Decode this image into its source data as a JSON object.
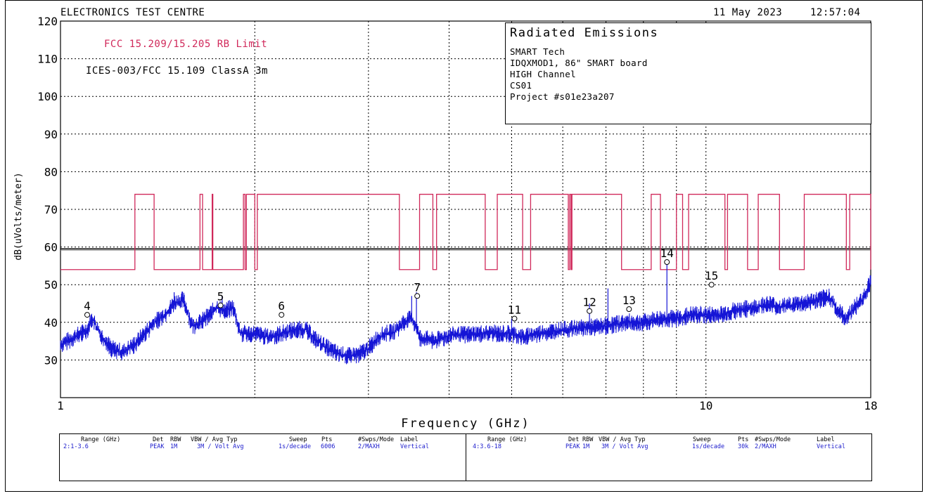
{
  "header": {
    "lab_name": "ELECTRONICS TEST CENTRE",
    "date": "11 May 2023",
    "time": "12:57:04"
  },
  "info_box": {
    "title": "Radiated Emissions",
    "lines": [
      "SMART Tech",
      "IDQXMOD1, 86\" SMART board",
      "HIGH Channel",
      "CS01",
      "Project #s01e23a207"
    ]
  },
  "limits": {
    "rb_limit_label": "FCC 15.209/15.205 RB Limit",
    "classa_label": "ICES-003/FCC 15.109 ClassA 3m"
  },
  "colors": {
    "trace": "#1515d6",
    "rb_limit": "#d0285a",
    "grid": "#000000",
    "table_values": "#1a1acc"
  },
  "chart_data": {
    "type": "line",
    "xlabel": "Frequency (GHz)",
    "ylabel": "dB(uVolts/meter)",
    "xscale": "log",
    "xlim": [
      1,
      18
    ],
    "ylim": [
      20,
      120
    ],
    "x_tick_labels": [
      {
        "x": 1,
        "label": "1"
      },
      {
        "x": 10,
        "label": "10"
      },
      {
        "x": 18,
        "label": "18"
      }
    ],
    "x_minor_ticks": [
      2,
      3,
      4,
      5,
      6,
      7,
      8,
      9
    ],
    "y_ticks": [
      30,
      40,
      50,
      60,
      70,
      80,
      90,
      100,
      110,
      120
    ],
    "grid": true,
    "classa_limit": {
      "name": "ICES-003/FCC 15.109 ClassA 3m",
      "value": 59.5
    },
    "rb_limit": {
      "name": "FCC 15.209/15.205 RB Limit",
      "low": 54,
      "high": 74,
      "high_bands_ghz": [
        [
          1.304,
          1.3965
        ],
        [
          1.6449,
          1.66
        ],
        [
          1.7178,
          1.722
        ],
        [
          1.9205,
          1.9319
        ],
        [
          1.9411,
          2.0
        ],
        [
          2.018,
          3.35
        ],
        [
          3.6,
          3.775
        ],
        [
          3.825,
          4.55
        ],
        [
          4.75,
          5.2
        ],
        [
          5.35,
          6.12
        ],
        [
          6.15,
          6.18
        ],
        [
          6.2,
          7.4
        ],
        [
          8.225,
          8.5
        ],
        [
          9.0,
          9.2
        ],
        [
          9.4,
          10.7
        ],
        [
          10.8,
          11.6
        ],
        [
          12.05,
          13.0
        ],
        [
          14.2,
          16.5
        ],
        [
          16.7,
          18.0
        ]
      ]
    },
    "series": [
      {
        "name": "Vertical",
        "points": [
          [
            1.0,
            34
          ],
          [
            1.05,
            36
          ],
          [
            1.1,
            38
          ],
          [
            1.12,
            41
          ],
          [
            1.15,
            37
          ],
          [
            1.2,
            33
          ],
          [
            1.25,
            32
          ],
          [
            1.3,
            34
          ],
          [
            1.35,
            37
          ],
          [
            1.4,
            40
          ],
          [
            1.45,
            42
          ],
          [
            1.5,
            45
          ],
          [
            1.55,
            46
          ],
          [
            1.6,
            39
          ],
          [
            1.65,
            40
          ],
          [
            1.7,
            42
          ],
          [
            1.75,
            44
          ],
          [
            1.8,
            43
          ],
          [
            1.85,
            44
          ],
          [
            1.9,
            37
          ],
          [
            2.0,
            37
          ],
          [
            2.1,
            36
          ],
          [
            2.2,
            37
          ],
          [
            2.3,
            38
          ],
          [
            2.4,
            38
          ],
          [
            2.5,
            35
          ],
          [
            2.6,
            33
          ],
          [
            2.7,
            31.5
          ],
          [
            2.8,
            31
          ],
          [
            2.9,
            31.5
          ],
          [
            3.0,
            33
          ],
          [
            3.1,
            36
          ],
          [
            3.2,
            37
          ],
          [
            3.3,
            37.5
          ],
          [
            3.4,
            40
          ],
          [
            3.5,
            41
          ],
          [
            3.55,
            39
          ],
          [
            3.6,
            36
          ],
          [
            3.8,
            35
          ],
          [
            4.0,
            36.5
          ],
          [
            4.5,
            37
          ],
          [
            5.0,
            37
          ],
          [
            5.2,
            36
          ],
          [
            5.5,
            37
          ],
          [
            6.0,
            38
          ],
          [
            6.5,
            38.5
          ],
          [
            7.0,
            39
          ],
          [
            7.5,
            40
          ],
          [
            8.0,
            40
          ],
          [
            8.5,
            41
          ],
          [
            9.0,
            41
          ],
          [
            9.5,
            42
          ],
          [
            10.0,
            42
          ],
          [
            10.5,
            42
          ],
          [
            11.0,
            43
          ],
          [
            12.0,
            44
          ],
          [
            12.5,
            45
          ],
          [
            13.0,
            44
          ],
          [
            14.0,
            45
          ],
          [
            15.0,
            46
          ],
          [
            15.5,
            47
          ],
          [
            16.0,
            43
          ],
          [
            16.5,
            41
          ],
          [
            17.0,
            44
          ],
          [
            17.5,
            46
          ],
          [
            18.0,
            51
          ]
        ]
      }
    ],
    "spikes": [
      {
        "x": 1.5,
        "y": 48
      },
      {
        "x": 1.78,
        "y": 47
      },
      {
        "x": 3.5,
        "y": 47
      },
      {
        "x": 3.56,
        "y": 48
      },
      {
        "x": 5.0,
        "y": 41
      },
      {
        "x": 6.6,
        "y": 45
      },
      {
        "x": 7.05,
        "y": 49
      },
      {
        "x": 8.7,
        "y": 56
      }
    ],
    "markers": [
      {
        "label": "4",
        "x": 1.1,
        "y": 42
      },
      {
        "label": "5",
        "x": 1.77,
        "y": 44.5
      },
      {
        "label": "6",
        "x": 2.2,
        "y": 42
      },
      {
        "label": "7",
        "x": 3.57,
        "y": 47
      },
      {
        "label": "11",
        "x": 5.05,
        "y": 41
      },
      {
        "label": "12",
        "x": 6.6,
        "y": 43
      },
      {
        "label": "13",
        "x": 7.6,
        "y": 43.5
      },
      {
        "label": "14",
        "x": 8.7,
        "y": 56
      },
      {
        "label": "15",
        "x": 10.2,
        "y": 50
      }
    ]
  },
  "sweep_table": [
    {
      "headers": {
        "range": "Range (GHz)",
        "det": "Det",
        "rbw": "RBW",
        "vbw": "VBW / Avg Typ",
        "sweep": "Sweep",
        "pts": "Pts",
        "swps": "#Swps/Mode",
        "label": "Label"
      },
      "values": {
        "range": "2:1-3.6",
        "det": "PEAK",
        "rbw": "1M",
        "vbw": "3M / Volt Avg",
        "sweep": "1s/decade",
        "pts": "6006",
        "swps": "2/MAXH",
        "label": "Vertical"
      }
    },
    {
      "headers": {
        "range": "Range (GHz)",
        "det": "Det",
        "rbw": "RBW",
        "vbw": "VBW / Avg Typ",
        "sweep": "Sweep",
        "pts": "Pts",
        "swps": "#Swps/Mode",
        "label": "Label"
      },
      "values": {
        "range": "4:3.6-18",
        "det": "PEAK",
        "rbw": "1M",
        "vbw": "3M / Volt Avg",
        "sweep": "1s/decade",
        "pts": "30k",
        "swps": "2/MAXH",
        "label": "Vertical"
      }
    }
  ]
}
